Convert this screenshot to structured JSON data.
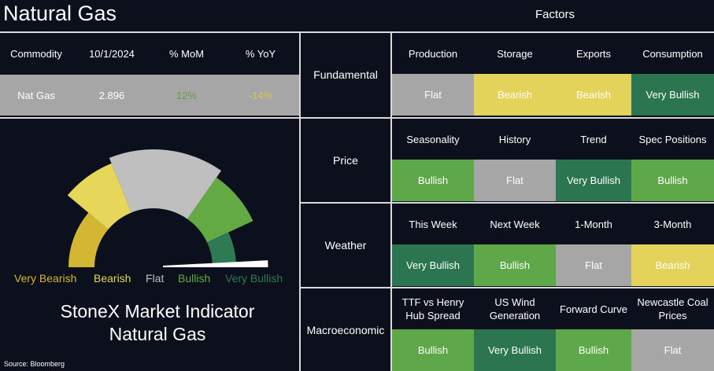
{
  "title": "Natural Gas",
  "factors_title": "Factors",
  "commodity_table": {
    "headers": [
      "Commodity",
      "10/1/2024",
      "% MoM",
      "% YoY"
    ],
    "row": {
      "commodity": "Nat Gas",
      "price": "2.896",
      "mom": "12%",
      "yoy": "-14%"
    }
  },
  "gauge": {
    "legend": [
      "Very Bearish",
      "Bearish",
      "Flat",
      "Bullish",
      "Very Bullish"
    ],
    "legend_colors": [
      "#d3b632",
      "#e6d75a",
      "#bfbfbf",
      "#64aa44",
      "#2d7a55"
    ],
    "needle_reading": "Very Bullish",
    "indicator_line1": "StoneX Market Indicator",
    "indicator_line2": "Natural Gas"
  },
  "source": "Source: Bloomberg",
  "colors": {
    "flat": "#a6a6a6",
    "bearish": "#e3d35a",
    "bullish": "#5fa84a",
    "very_bullish": "#2b7550"
  },
  "factors": [
    {
      "label": "Fundamental",
      "items": [
        {
          "name": "Production",
          "value": "Flat"
        },
        {
          "name": "Storage",
          "value": "Bearish"
        },
        {
          "name": "Exports",
          "value": "Bearish"
        },
        {
          "name": "Consumption",
          "value": "Very Bullish"
        }
      ]
    },
    {
      "label": "Price",
      "items": [
        {
          "name": "Seasonality",
          "value": "Bullish"
        },
        {
          "name": "History",
          "value": "Flat"
        },
        {
          "name": "Trend",
          "value": "Very Bullish"
        },
        {
          "name": "Spec Positions",
          "value": "Bullish"
        }
      ]
    },
    {
      "label": "Weather",
      "items": [
        {
          "name": "This Week",
          "value": "Very Bullish"
        },
        {
          "name": "Next Week",
          "value": "Bullish"
        },
        {
          "name": "1-Month",
          "value": "Flat"
        },
        {
          "name": "3-Month",
          "value": "Bearish"
        }
      ]
    },
    {
      "label": "Macroeconomic",
      "items": [
        {
          "name": "TTF vs Henry Hub Spread",
          "value": "Bullish"
        },
        {
          "name": "US Wind Generation",
          "value": "Very Bullish"
        },
        {
          "name": "Forward Curve",
          "value": "Bullish"
        },
        {
          "name": "Newcastle Coal Prices",
          "value": "Flat"
        }
      ]
    }
  ]
}
